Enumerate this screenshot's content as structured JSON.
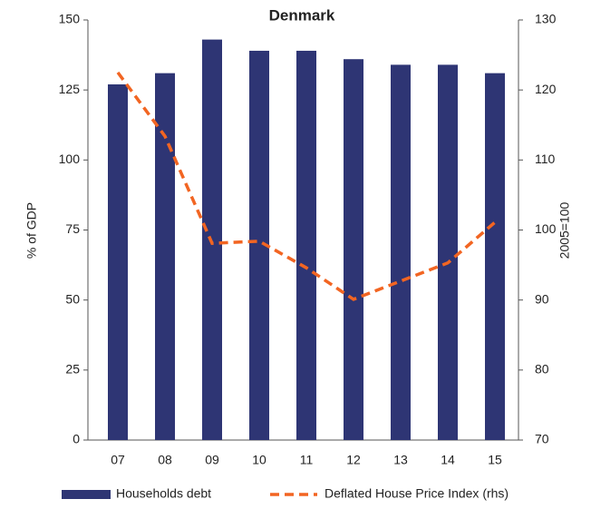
{
  "chart_data": {
    "type": "bar",
    "title": "Denmark",
    "y_label": "% of GDP",
    "y2_label": "2005=100",
    "categories": [
      "07",
      "08",
      "09",
      "10",
      "11",
      "12",
      "13",
      "14",
      "15"
    ],
    "series": [
      {
        "name": "Households debt",
        "type": "bar",
        "color": "#2e3574",
        "values": [
          127,
          131,
          143,
          139,
          139,
          136,
          134,
          134,
          131
        ]
      },
      {
        "name": "Deflated House Price Index (rhs)",
        "type": "line",
        "axis": "y2",
        "color": "#f26522",
        "dashed": true,
        "values": [
          122.5,
          113.4,
          98.1,
          98.4,
          94.6,
          90.1,
          92.7,
          95.3,
          101.1
        ]
      }
    ],
    "ylim": [
      0,
      150
    ],
    "yticks": [
      0,
      25,
      50,
      75,
      100,
      125,
      150
    ],
    "y2lim": [
      70,
      130
    ],
    "y2ticks": [
      70,
      80,
      90,
      100,
      110,
      120,
      130
    ],
    "grid": false,
    "legend": "bottom"
  }
}
